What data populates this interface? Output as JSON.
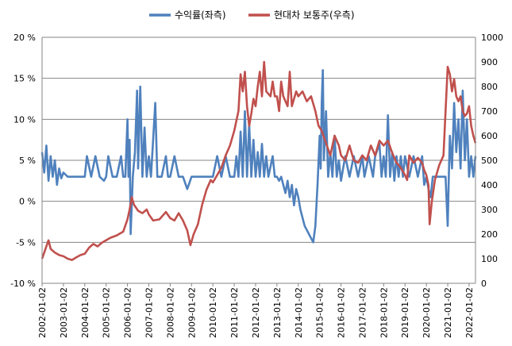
{
  "chart_data": {
    "type": "line",
    "legend_position": "top-center",
    "grid": {
      "horizontal": true,
      "vertical": false
    },
    "x_tick_labels": [
      "2002-01-02",
      "2003-01-02",
      "2004-01-02",
      "2005-01-02",
      "2006-01-02",
      "2007-01-02",
      "2008-01-02",
      "2009-01-02",
      "2010-01-02",
      "2011-01-02",
      "2012-01-02",
      "2013-01-02",
      "2014-01-02",
      "2015-01-02",
      "2016-01-02",
      "2017-01-02",
      "2018-01-02",
      "2019-01-02",
      "2020-01-02",
      "2021-01-02",
      "2022-01-02"
    ],
    "y_left": {
      "min": -10,
      "max": 20,
      "step": 5,
      "tick_labels": [
        "-10 %",
        "-5 %",
        "0 %",
        "5 %",
        "10 %",
        "15 %",
        "20 %"
      ]
    },
    "y_right": {
      "min": 0,
      "max": 1000,
      "step": 100,
      "tick_labels": [
        "0",
        "100",
        "200",
        "300",
        "400",
        "500",
        "600",
        "700",
        "800",
        "900",
        "1000"
      ]
    },
    "series": [
      {
        "name": "수익률(좌측)",
        "axis": "left",
        "color": "#4f81bd",
        "points": [
          [
            2002.0,
            6.0
          ],
          [
            2002.1,
            3.5
          ],
          [
            2002.2,
            6.8
          ],
          [
            2002.3,
            2.5
          ],
          [
            2002.4,
            5.5
          ],
          [
            2002.5,
            3.0
          ],
          [
            2002.6,
            5.0
          ],
          [
            2002.7,
            2.0
          ],
          [
            2002.8,
            4.0
          ],
          [
            2002.9,
            2.8
          ],
          [
            2003.0,
            3.5
          ],
          [
            2003.2,
            3.0
          ],
          [
            2003.5,
            3.0
          ],
          [
            2003.8,
            3.0
          ],
          [
            2004.0,
            3.0
          ],
          [
            2004.1,
            5.5
          ],
          [
            2004.3,
            3.0
          ],
          [
            2004.5,
            5.5
          ],
          [
            2004.7,
            3.0
          ],
          [
            2004.9,
            2.5
          ],
          [
            2005.0,
            3.0
          ],
          [
            2005.1,
            5.5
          ],
          [
            2005.3,
            3.0
          ],
          [
            2005.5,
            3.0
          ],
          [
            2005.7,
            5.5
          ],
          [
            2005.8,
            3.0
          ],
          [
            2005.9,
            3.0
          ],
          [
            2006.0,
            10.0
          ],
          [
            2006.05,
            3.0
          ],
          [
            2006.1,
            7.5
          ],
          [
            2006.15,
            -4.0
          ],
          [
            2006.25,
            3.0
          ],
          [
            2006.35,
            6.0
          ],
          [
            2006.45,
            13.5
          ],
          [
            2006.5,
            4.0
          ],
          [
            2006.6,
            14.0
          ],
          [
            2006.7,
            3.0
          ],
          [
            2006.8,
            9.0
          ],
          [
            2006.9,
            3.0
          ],
          [
            2007.0,
            5.5
          ],
          [
            2007.1,
            3.0
          ],
          [
            2007.3,
            12.0
          ],
          [
            2007.4,
            3.0
          ],
          [
            2007.6,
            3.0
          ],
          [
            2007.8,
            5.5
          ],
          [
            2007.9,
            3.0
          ],
          [
            2008.0,
            3.0
          ],
          [
            2008.2,
            5.5
          ],
          [
            2008.4,
            3.0
          ],
          [
            2008.6,
            3.0
          ],
          [
            2008.8,
            1.5
          ],
          [
            2009.0,
            3.0
          ],
          [
            2009.3,
            3.0
          ],
          [
            2009.6,
            3.0
          ],
          [
            2009.9,
            3.0
          ],
          [
            2010.0,
            3.0
          ],
          [
            2010.2,
            5.5
          ],
          [
            2010.4,
            3.0
          ],
          [
            2010.6,
            5.5
          ],
          [
            2010.8,
            3.0
          ],
          [
            2011.0,
            3.0
          ],
          [
            2011.1,
            5.5
          ],
          [
            2011.2,
            3.0
          ],
          [
            2011.3,
            8.5
          ],
          [
            2011.4,
            3.0
          ],
          [
            2011.5,
            11.0
          ],
          [
            2011.6,
            3.0
          ],
          [
            2011.7,
            9.5
          ],
          [
            2011.8,
            3.0
          ],
          [
            2011.9,
            7.5
          ],
          [
            2012.0,
            3.0
          ],
          [
            2012.1,
            6.0
          ],
          [
            2012.2,
            3.0
          ],
          [
            2012.3,
            7.0
          ],
          [
            2012.4,
            3.0
          ],
          [
            2012.5,
            5.5
          ],
          [
            2012.6,
            3.0
          ],
          [
            2012.8,
            5.5
          ],
          [
            2012.9,
            3.0
          ],
          [
            2013.0,
            3.0
          ],
          [
            2013.1,
            2.5
          ],
          [
            2013.2,
            3.0
          ],
          [
            2013.3,
            2.0
          ],
          [
            2013.4,
            1.0
          ],
          [
            2013.5,
            2.5
          ],
          [
            2013.6,
            0.5
          ],
          [
            2013.7,
            2.0
          ],
          [
            2013.8,
            -0.5
          ],
          [
            2013.9,
            1.5
          ],
          [
            2014.0,
            0.5
          ],
          [
            2014.1,
            -1.0
          ],
          [
            2014.2,
            -2.0
          ],
          [
            2014.3,
            -3.0
          ],
          [
            2014.4,
            -3.5
          ],
          [
            2014.5,
            -4.0
          ],
          [
            2014.6,
            -4.5
          ],
          [
            2014.7,
            -5.0
          ],
          [
            2014.8,
            -3.0
          ],
          [
            2014.9,
            2.0
          ],
          [
            2015.0,
            8.0
          ],
          [
            2015.05,
            4.0
          ],
          [
            2015.1,
            12.0
          ],
          [
            2015.15,
            16.0
          ],
          [
            2015.2,
            5.0
          ],
          [
            2015.3,
            11.0
          ],
          [
            2015.4,
            3.0
          ],
          [
            2015.5,
            6.0
          ],
          [
            2015.6,
            3.0
          ],
          [
            2015.7,
            8.0
          ],
          [
            2015.8,
            3.0
          ],
          [
            2015.9,
            5.0
          ],
          [
            2016.0,
            2.5
          ],
          [
            2016.2,
            5.5
          ],
          [
            2016.4,
            3.0
          ],
          [
            2016.6,
            5.5
          ],
          [
            2016.8,
            3.0
          ],
          [
            2017.0,
            5.5
          ],
          [
            2017.1,
            3.0
          ],
          [
            2017.3,
            5.5
          ],
          [
            2017.5,
            3.0
          ],
          [
            2017.6,
            5.5
          ],
          [
            2017.8,
            7.0
          ],
          [
            2017.9,
            3.0
          ],
          [
            2018.0,
            5.5
          ],
          [
            2018.1,
            3.0
          ],
          [
            2018.2,
            10.5
          ],
          [
            2018.3,
            3.0
          ],
          [
            2018.4,
            6.0
          ],
          [
            2018.5,
            2.5
          ],
          [
            2018.6,
            5.5
          ],
          [
            2018.7,
            3.0
          ],
          [
            2018.8,
            5.5
          ],
          [
            2018.9,
            3.0
          ],
          [
            2019.0,
            5.5
          ],
          [
            2019.2,
            3.0
          ],
          [
            2019.4,
            5.5
          ],
          [
            2019.6,
            3.0
          ],
          [
            2019.8,
            5.5
          ],
          [
            2019.9,
            2.0
          ],
          [
            2020.0,
            3.0
          ],
          [
            2020.1,
            1.5
          ],
          [
            2020.2,
            0.5
          ],
          [
            2020.3,
            3.0
          ],
          [
            2020.5,
            3.0
          ],
          [
            2020.8,
            3.0
          ],
          [
            2020.9,
            3.0
          ],
          [
            2021.0,
            -3.0
          ],
          [
            2021.05,
            3.0
          ],
          [
            2021.1,
            8.0
          ],
          [
            2021.2,
            4.0
          ],
          [
            2021.3,
            12.0
          ],
          [
            2021.4,
            6.0
          ],
          [
            2021.5,
            10.0
          ],
          [
            2021.6,
            4.0
          ],
          [
            2021.7,
            13.5
          ],
          [
            2021.8,
            5.0
          ],
          [
            2021.9,
            10.0
          ],
          [
            2022.0,
            3.0
          ],
          [
            2022.1,
            5.5
          ],
          [
            2022.2,
            3.0
          ],
          [
            2022.3,
            5.5
          ]
        ]
      },
      {
        "name": "현대차 보통주(우측)",
        "axis": "right",
        "color": "#c0504d",
        "points": [
          [
            2002.0,
            100
          ],
          [
            2002.1,
            125
          ],
          [
            2002.2,
            150
          ],
          [
            2002.3,
            175
          ],
          [
            2002.4,
            140
          ],
          [
            2002.6,
            125
          ],
          [
            2002.8,
            115
          ],
          [
            2003.0,
            110
          ],
          [
            2003.2,
            100
          ],
          [
            2003.4,
            95
          ],
          [
            2003.6,
            105
          ],
          [
            2003.8,
            115
          ],
          [
            2004.0,
            120
          ],
          [
            2004.2,
            145
          ],
          [
            2004.4,
            160
          ],
          [
            2004.6,
            150
          ],
          [
            2004.8,
            165
          ],
          [
            2005.0,
            175
          ],
          [
            2005.2,
            185
          ],
          [
            2005.5,
            195
          ],
          [
            2005.8,
            210
          ],
          [
            2006.0,
            260
          ],
          [
            2006.1,
            300
          ],
          [
            2006.2,
            350
          ],
          [
            2006.3,
            320
          ],
          [
            2006.5,
            295
          ],
          [
            2006.7,
            285
          ],
          [
            2006.9,
            300
          ],
          [
            2007.0,
            280
          ],
          [
            2007.2,
            255
          ],
          [
            2007.5,
            260
          ],
          [
            2007.8,
            290
          ],
          [
            2008.0,
            265
          ],
          [
            2008.2,
            255
          ],
          [
            2008.4,
            285
          ],
          [
            2008.6,
            255
          ],
          [
            2008.8,
            215
          ],
          [
            2008.95,
            155
          ],
          [
            2009.1,
            200
          ],
          [
            2009.3,
            240
          ],
          [
            2009.5,
            320
          ],
          [
            2009.7,
            380
          ],
          [
            2009.9,
            420
          ],
          [
            2010.0,
            410
          ],
          [
            2010.2,
            440
          ],
          [
            2010.4,
            470
          ],
          [
            2010.6,
            520
          ],
          [
            2010.8,
            560
          ],
          [
            2011.0,
            620
          ],
          [
            2011.2,
            700
          ],
          [
            2011.3,
            850
          ],
          [
            2011.4,
            780
          ],
          [
            2011.5,
            860
          ],
          [
            2011.6,
            720
          ],
          [
            2011.7,
            640
          ],
          [
            2011.8,
            690
          ],
          [
            2011.9,
            750
          ],
          [
            2012.0,
            720
          ],
          [
            2012.1,
            800
          ],
          [
            2012.2,
            860
          ],
          [
            2012.3,
            760
          ],
          [
            2012.4,
            900
          ],
          [
            2012.5,
            780
          ],
          [
            2012.7,
            760
          ],
          [
            2012.8,
            820
          ],
          [
            2012.9,
            760
          ],
          [
            2013.0,
            760
          ],
          [
            2013.1,
            700
          ],
          [
            2013.2,
            820
          ],
          [
            2013.3,
            760
          ],
          [
            2013.5,
            720
          ],
          [
            2013.6,
            860
          ],
          [
            2013.7,
            720
          ],
          [
            2013.9,
            780
          ],
          [
            2014.0,
            760
          ],
          [
            2014.2,
            780
          ],
          [
            2014.4,
            740
          ],
          [
            2014.6,
            760
          ],
          [
            2014.8,
            700
          ],
          [
            2014.95,
            640
          ],
          [
            2015.1,
            620
          ],
          [
            2015.3,
            570
          ],
          [
            2015.5,
            520
          ],
          [
            2015.7,
            600
          ],
          [
            2015.9,
            560
          ],
          [
            2016.0,
            520
          ],
          [
            2016.2,
            500
          ],
          [
            2016.4,
            560
          ],
          [
            2016.6,
            500
          ],
          [
            2016.8,
            490
          ],
          [
            2017.0,
            520
          ],
          [
            2017.2,
            500
          ],
          [
            2017.4,
            560
          ],
          [
            2017.6,
            520
          ],
          [
            2017.8,
            580
          ],
          [
            2018.0,
            560
          ],
          [
            2018.2,
            580
          ],
          [
            2018.4,
            530
          ],
          [
            2018.6,
            490
          ],
          [
            2018.8,
            470
          ],
          [
            2019.0,
            440
          ],
          [
            2019.1,
            420
          ],
          [
            2019.2,
            520
          ],
          [
            2019.4,
            490
          ],
          [
            2019.6,
            510
          ],
          [
            2019.8,
            490
          ],
          [
            2019.9,
            460
          ],
          [
            2020.0,
            440
          ],
          [
            2020.1,
            400
          ],
          [
            2020.15,
            240
          ],
          [
            2020.25,
            330
          ],
          [
            2020.4,
            420
          ],
          [
            2020.6,
            480
          ],
          [
            2020.8,
            520
          ],
          [
            2020.9,
            700
          ],
          [
            2021.0,
            880
          ],
          [
            2021.1,
            850
          ],
          [
            2021.2,
            780
          ],
          [
            2021.3,
            830
          ],
          [
            2021.4,
            760
          ],
          [
            2021.5,
            740
          ],
          [
            2021.6,
            760
          ],
          [
            2021.7,
            700
          ],
          [
            2021.8,
            680
          ],
          [
            2021.9,
            690
          ],
          [
            2022.0,
            720
          ],
          [
            2022.1,
            640
          ],
          [
            2022.2,
            600
          ],
          [
            2022.3,
            570
          ]
        ]
      }
    ]
  }
}
